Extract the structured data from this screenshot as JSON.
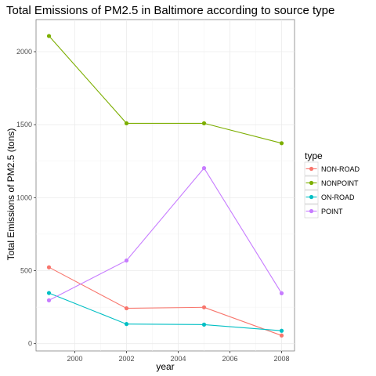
{
  "chart_data": {
    "type": "line",
    "title": "Total Emissions of PM2.5 in Baltimore according to source type",
    "xlabel": "year",
    "ylabel": "Total Emissions of PM2.5 (tons)",
    "x": [
      1999,
      2002,
      2005,
      2008
    ],
    "xlim": [
      1998.5,
      2008.5
    ],
    "ylim": [
      -50,
      2220
    ],
    "xticks": [
      2000,
      2002,
      2004,
      2006,
      2008
    ],
    "yticks": [
      0,
      500,
      1000,
      1500,
      2000
    ],
    "grid": true,
    "legend": {
      "title": "type",
      "position": "right"
    },
    "series": [
      {
        "name": "NON-ROAD",
        "color": "#F8766D",
        "values": [
          522.9,
          242.1,
          248.9,
          55.8
        ]
      },
      {
        "name": "NONPOINT",
        "color": "#7CAE00",
        "values": [
          2107.6,
          1509.5,
          1509.5,
          1373.2
        ]
      },
      {
        "name": "ON-ROAD",
        "color": "#00BFC4",
        "values": [
          346.8,
          134.3,
          130.4,
          88.3
        ]
      },
      {
        "name": "POINT",
        "color": "#C77CFF",
        "values": [
          296.8,
          569.3,
          1202.5,
          344.98
        ]
      }
    ]
  }
}
